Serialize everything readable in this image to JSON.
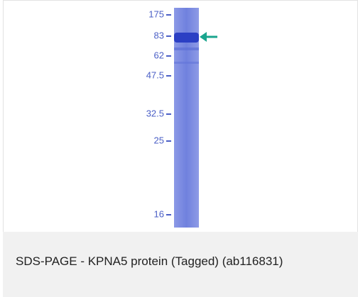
{
  "figure": {
    "markers": [
      "175",
      "83",
      "62",
      "47.5",
      "32.5",
      "25",
      "16"
    ],
    "caption": "SDS-PAGE - KPNA5 protein (Tagged) (ab116831)"
  }
}
